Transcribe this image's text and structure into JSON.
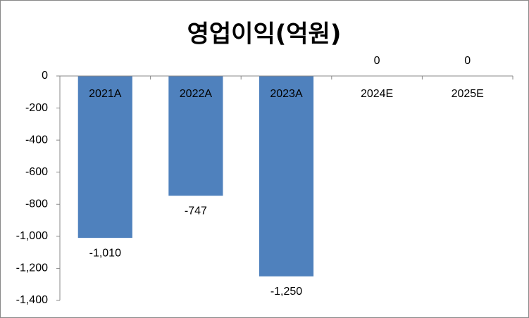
{
  "chart_data": {
    "type": "bar",
    "title": "영업이익(억원)",
    "categories": [
      "2021A",
      "2022A",
      "2023A",
      "2024E",
      "2025E"
    ],
    "values": [
      -1010,
      -747,
      -1250,
      0,
      0
    ],
    "value_labels": [
      "-1,010",
      "-747",
      "-1,250",
      "0",
      "0"
    ],
    "color": "#4f81bd",
    "ylim": [
      -1400,
      0
    ],
    "yticks": [
      0,
      -200,
      -400,
      -600,
      -800,
      {
        "value": -1000,
        "label": "-1,000"
      },
      {
        "value": -1200,
        "label": "-1,200"
      },
      {
        "value": -1400,
        "label": "-1,400"
      }
    ],
    "grid": false
  }
}
